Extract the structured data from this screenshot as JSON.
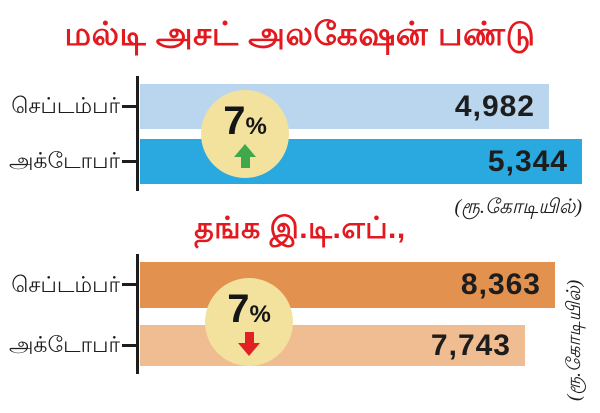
{
  "charts": [
    {
      "title": "மல்டி அசட் அலகேஷன் பண்டு",
      "unit_caption": "(ரூ.கோடியில்)",
      "change": {
        "number": "7",
        "sign": "%",
        "direction": "up"
      },
      "bars": [
        {
          "label": "செப்டம்பர்",
          "value": "4,982",
          "color": "#b9d6ee"
        },
        {
          "label": "அக்டோபர்",
          "value": "5,344",
          "color": "#2aa9e0"
        }
      ]
    },
    {
      "title": "தங்க இ.டி.எப்.,",
      "unit_caption": "(ரூ.கோடியில்)",
      "change": {
        "number": "7",
        "sign": "%",
        "direction": "down"
      },
      "bars": [
        {
          "label": "செப்டம்பர்",
          "value": "8,363",
          "color": "#e2914e"
        },
        {
          "label": "அக்டோபர்",
          "value": "7,743",
          "color": "#f0bd92"
        }
      ]
    }
  ],
  "chart_data": [
    {
      "type": "bar",
      "orientation": "horizontal",
      "title": "மல்டி அசட் அலகேஷன் பண்டு",
      "categories": [
        "செப்டம்பர்",
        "அக்டோபர்"
      ],
      "values": [
        4982,
        5344
      ],
      "value_labels": [
        "4,982",
        "5,344"
      ],
      "unit": "ரூ.கோடியில்",
      "change_percent": 7,
      "change_direction": "up",
      "bar_colors": [
        "#b9d6ee",
        "#2aa9e0"
      ],
      "legend_position": "none",
      "grid": false
    },
    {
      "type": "bar",
      "orientation": "horizontal",
      "title": "தங்க இ.டி.எப்.,",
      "categories": [
        "செப்டம்பர்",
        "அக்டோபர்"
      ],
      "values": [
        8363,
        7743
      ],
      "value_labels": [
        "8,363",
        "7,743"
      ],
      "unit": "ரூ.கோடியில்",
      "change_percent": 7,
      "change_direction": "down",
      "bar_colors": [
        "#e2914e",
        "#f0bd92"
      ],
      "legend_position": "none",
      "grid": false
    }
  ],
  "colors": {
    "title_red": "#e2191f",
    "axis_black": "#1d1d1d",
    "badge_cream": "#f3e29e",
    "up_green": "#3fa84a",
    "down_red": "#e31f26",
    "bar_light_blue": "#b9d6ee",
    "bar_dark_blue": "#2aa9e0",
    "bar_dark_orange": "#e2914e",
    "bar_light_orange": "#f0bd92"
  }
}
